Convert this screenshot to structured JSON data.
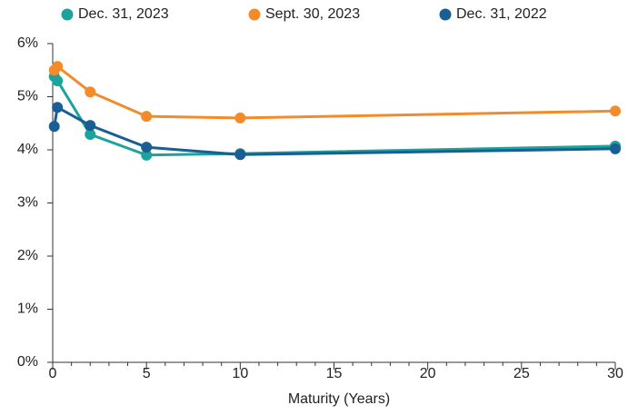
{
  "chart_data": {
    "type": "line",
    "xlabel": "Maturity (Years)",
    "x": [
      0.083,
      0.25,
      2,
      5,
      10,
      30
    ],
    "series": [
      {
        "name": "Dec. 31, 2023",
        "color": "#1ba39c",
        "values": [
          5.38,
          5.3,
          4.29,
          3.9,
          3.93,
          4.07
        ]
      },
      {
        "name": "Sept. 30, 2023",
        "color": "#f28c2a",
        "values": [
          5.5,
          5.57,
          5.09,
          4.63,
          4.6,
          4.73
        ]
      },
      {
        "name": "Dec. 31, 2022",
        "color": "#1a5f94",
        "values": [
          4.44,
          4.8,
          4.46,
          4.05,
          3.91,
          4.02
        ]
      }
    ],
    "xlim": [
      0,
      30
    ],
    "xticks": [
      0,
      5,
      10,
      15,
      20,
      25,
      30
    ],
    "xminorticks": [
      1,
      2,
      3,
      4,
      6,
      7,
      8,
      9,
      11,
      12,
      13,
      14,
      16,
      17,
      18,
      19,
      21,
      22,
      23,
      24,
      26,
      27,
      28,
      29
    ],
    "ylim": [
      0,
      6
    ],
    "yticks": [
      {
        "value": 0,
        "label": "0%"
      },
      {
        "value": 1,
        "label": "1%"
      },
      {
        "value": 2,
        "label": "2%"
      },
      {
        "value": 3,
        "label": "3%"
      },
      {
        "value": 4,
        "label": "4%"
      },
      {
        "value": 5,
        "label": "5%"
      },
      {
        "value": 6,
        "label": "6%"
      }
    ],
    "grid": false,
    "legend": "top"
  }
}
